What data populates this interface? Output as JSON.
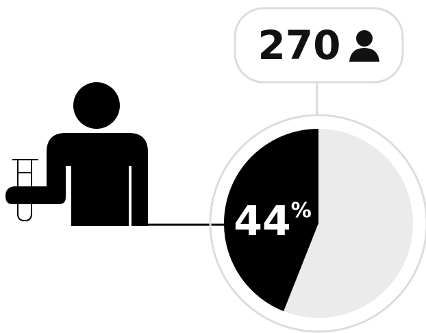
{
  "chart_data": {
    "type": "pie",
    "values": [
      44,
      56
    ],
    "colors": [
      "#000000",
      "#ebebeb"
    ],
    "unit": "%",
    "count": 270
  }
}
